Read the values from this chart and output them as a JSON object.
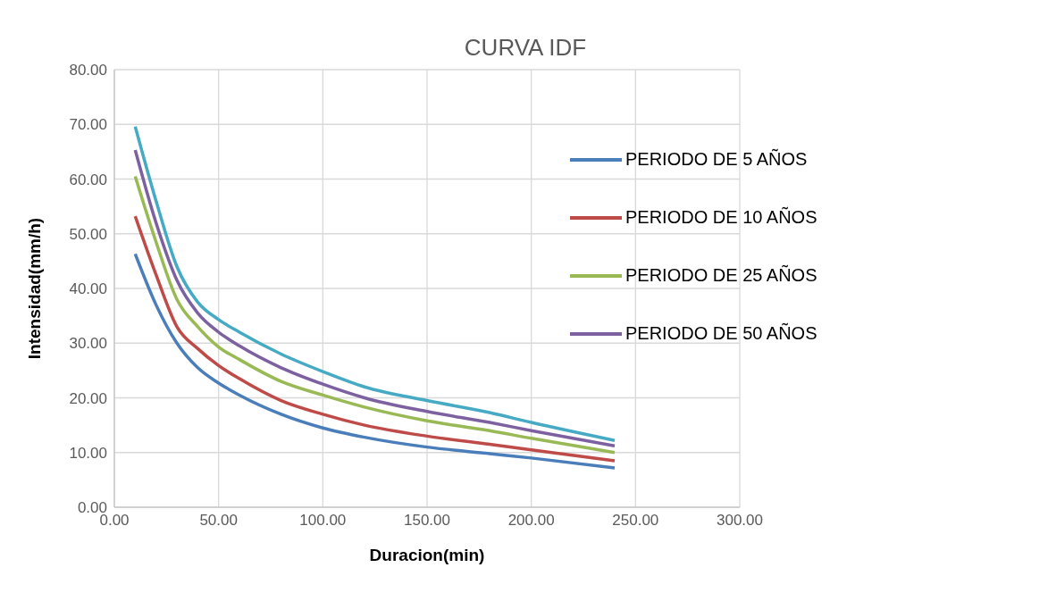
{
  "chart_data": {
    "type": "line",
    "title": "CURVA IDF",
    "xlabel": "Duracion(min)",
    "ylabel": "Intensidad(mm/h)",
    "x": [
      10,
      20,
      30,
      40,
      50,
      60,
      80,
      100,
      120,
      150,
      180,
      200,
      240
    ],
    "series": [
      {
        "name": "PERIODO DE 5 AÑOS",
        "color": "#4a7ebb",
        "values": [
          46.3,
          37,
          30,
          25.5,
          22.7,
          20.5,
          17,
          14.5,
          12.8,
          11,
          9.8,
          9,
          7.2
        ]
      },
      {
        "name": "PERIODO DE 10 AÑOS",
        "color": "#be4b48",
        "values": [
          53.2,
          42.5,
          33,
          29,
          25.9,
          23.5,
          19.5,
          17,
          15,
          13,
          11.5,
          10.5,
          8.5
        ]
      },
      {
        "name": "PERIODO DE 25 AÑOS",
        "color": "#98b954",
        "values": [
          60.5,
          48.5,
          38,
          33,
          29.3,
          27,
          23,
          20.5,
          18.3,
          15.8,
          14,
          12.6,
          10
        ]
      },
      {
        "name": "PERIODO DE 50 AÑOS",
        "color": "#7d60a0",
        "values": [
          65.3,
          52,
          41.5,
          35.5,
          32,
          29.5,
          25.5,
          22.5,
          20,
          17.5,
          15.5,
          14,
          11.2
        ]
      },
      {
        "color": "#46aac5",
        "values": [
          69.6,
          56,
          44,
          37.5,
          34.3,
          32,
          28,
          24.8,
          22,
          19.5,
          17.3,
          15.5,
          12.2
        ]
      }
    ],
    "xlim": [
      0,
      300
    ],
    "xticks": [
      {
        "value": 0,
        "label": "0.00"
      },
      {
        "value": 50,
        "label": "50.00"
      },
      {
        "value": 100,
        "label": "100.00"
      },
      {
        "value": 150,
        "label": "150.00"
      },
      {
        "value": 200,
        "label": "200.00"
      },
      {
        "value": 250,
        "label": "250.00"
      },
      {
        "value": 300,
        "label": "300.00"
      }
    ],
    "ylim": [
      0,
      80
    ],
    "yticks": [
      {
        "value": 0,
        "label": "0.00"
      },
      {
        "value": 10,
        "label": "10.00"
      },
      {
        "value": 20,
        "label": "20.00"
      },
      {
        "value": 30,
        "label": "30.00"
      },
      {
        "value": 40,
        "label": "40.00"
      },
      {
        "value": 50,
        "label": "50.00"
      },
      {
        "value": 60,
        "label": "60.00"
      },
      {
        "value": 70,
        "label": "70.00"
      },
      {
        "value": 80,
        "label": "80.00"
      }
    ],
    "grid": true,
    "legend": "top right",
    "marker": "none",
    "line_style": "solid"
  }
}
